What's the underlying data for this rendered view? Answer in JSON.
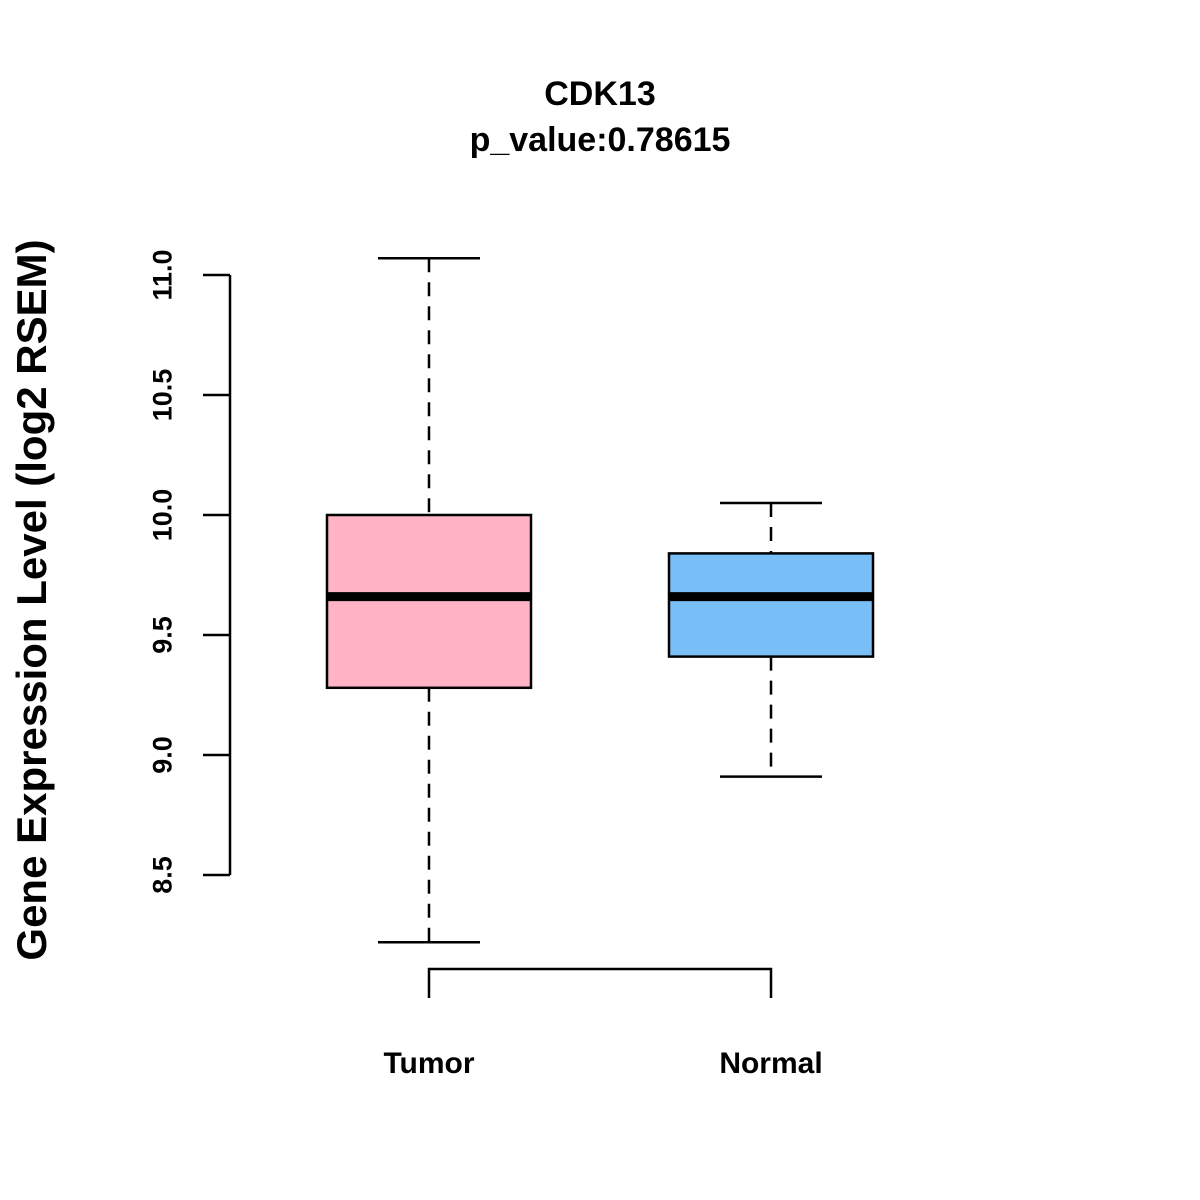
{
  "chart_data": {
    "type": "box",
    "title": "CDK13",
    "subtitle": "p_value:0.78615",
    "xlabel": "",
    "ylabel": "Gene Expression Level (log2 RSEM)",
    "ylim": [
      8.5,
      11.0
    ],
    "yticks": [
      8.5,
      9.0,
      9.5,
      10.0,
      10.5,
      11.0
    ],
    "ytick_labels": [
      "8.5",
      "9.0",
      "9.5",
      "10.0",
      "10.5",
      "11.0"
    ],
    "grid": false,
    "categories": [
      "Tumor",
      "Normal"
    ],
    "series": [
      {
        "name": "Tumor",
        "min": 8.22,
        "q1": 9.28,
        "median": 9.66,
        "q3": 10.0,
        "max": 11.07,
        "color": "#FFB3C4"
      },
      {
        "name": "Normal",
        "min": 8.91,
        "q1": 9.41,
        "median": 9.66,
        "q3": 9.84,
        "max": 10.05,
        "color": "#78BFF7"
      }
    ],
    "annotations": [
      "significance bracket connecting Tumor and Normal"
    ]
  }
}
